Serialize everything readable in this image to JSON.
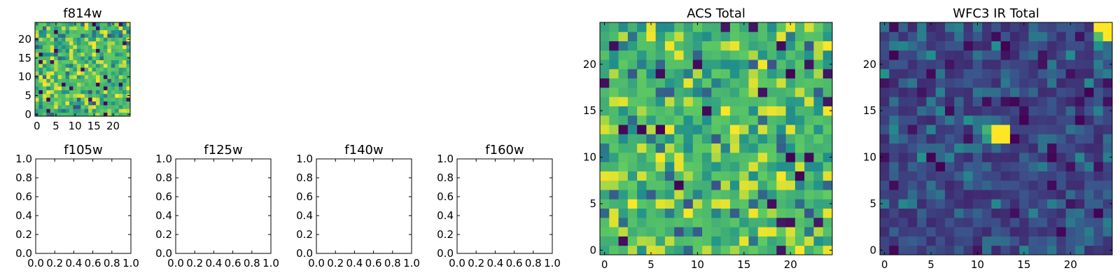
{
  "figure": {
    "background": "#ffffff",
    "colormap": "viridis",
    "colormap_stops": [
      "#440154",
      "#3b528b",
      "#21918c",
      "#5ec962",
      "#fde725"
    ]
  },
  "chart_data": [
    {
      "type": "heatmap",
      "title": "f814w",
      "grid_size": 25,
      "pattern": "noise-high",
      "seed": 11,
      "x_ticks": [
        0,
        5,
        10,
        15,
        20
      ],
      "y_ticks": [
        0,
        5,
        10,
        15,
        20
      ],
      "x_tick_labels": [
        "0",
        "5",
        "10",
        "15",
        "20"
      ],
      "y_tick_labels": [
        "0",
        "5",
        "10",
        "15",
        "20"
      ],
      "xlim": [
        -0.5,
        24.5
      ],
      "ylim": [
        -0.5,
        24.5
      ]
    },
    {
      "type": "empty",
      "title": "f105w",
      "xlim": [
        0,
        1
      ],
      "ylim": [
        0,
        1
      ],
      "x_tick_labels": [
        "0.0",
        "0.2",
        "0.4",
        "0.6",
        "0.8",
        "1.0"
      ],
      "y_tick_labels": [
        "0.0",
        "0.2",
        "0.4",
        "0.6",
        "0.8",
        "1.0"
      ]
    },
    {
      "type": "empty",
      "title": "f125w",
      "xlim": [
        0,
        1
      ],
      "ylim": [
        0,
        1
      ],
      "x_tick_labels": [
        "0.0",
        "0.2",
        "0.4",
        "0.6",
        "0.8",
        "1.0"
      ],
      "y_tick_labels": [
        "0.0",
        "0.2",
        "0.4",
        "0.6",
        "0.8",
        "1.0"
      ]
    },
    {
      "type": "empty",
      "title": "f140w",
      "xlim": [
        0,
        1
      ],
      "ylim": [
        0,
        1
      ],
      "x_tick_labels": [
        "0.0",
        "0.2",
        "0.4",
        "0.6",
        "0.8",
        "1.0"
      ],
      "y_tick_labels": [
        "0.0",
        "0.2",
        "0.4",
        "0.6",
        "0.8",
        "1.0"
      ]
    },
    {
      "type": "empty",
      "title": "f160w",
      "xlim": [
        0,
        1
      ],
      "ylim": [
        0,
        1
      ],
      "x_tick_labels": [
        "0.0",
        "0.2",
        "0.4",
        "0.6",
        "0.8",
        "1.0"
      ],
      "y_tick_labels": [
        "0.0",
        "0.2",
        "0.4",
        "0.6",
        "0.8",
        "1.0"
      ]
    },
    {
      "type": "heatmap",
      "title": "ACS Total",
      "grid_size": 25,
      "pattern": "noise-high",
      "seed": 29,
      "x_ticks": [
        0,
        5,
        10,
        15,
        20
      ],
      "y_ticks": [
        0,
        5,
        10,
        15,
        20
      ],
      "x_tick_labels": [
        "0",
        "5",
        "10",
        "15",
        "20"
      ],
      "y_tick_labels": [
        "0",
        "5",
        "10",
        "15",
        "20"
      ],
      "xlim": [
        -0.5,
        24.5
      ],
      "ylim": [
        -0.5,
        24.5
      ]
    },
    {
      "type": "heatmap",
      "title": "WFC3 IR Total",
      "grid_size": 25,
      "pattern": "noise-low",
      "seed": 47,
      "hotspots": [
        {
          "x": 12,
          "y": 12,
          "value": 1.0
        },
        {
          "x": 13,
          "y": 12,
          "value": 1.0
        },
        {
          "x": 12,
          "y": 13,
          "value": 1.0
        },
        {
          "x": 13,
          "y": 13,
          "value": 1.0
        },
        {
          "x": 11,
          "y": 13,
          "value": 0.65
        },
        {
          "x": 11,
          "y": 12,
          "value": 0.55
        },
        {
          "x": 23,
          "y": 24,
          "value": 1.0
        },
        {
          "x": 24,
          "y": 24,
          "value": 1.0
        },
        {
          "x": 23,
          "y": 23,
          "value": 0.7
        },
        {
          "x": 24,
          "y": 23,
          "value": 1.0
        }
      ],
      "x_ticks": [
        0,
        5,
        10,
        15,
        20
      ],
      "y_ticks": [
        0,
        5,
        10,
        15,
        20
      ],
      "x_tick_labels": [
        "0",
        "5",
        "10",
        "15",
        "20"
      ],
      "y_tick_labels": [
        "0",
        "5",
        "10",
        "15",
        "20"
      ],
      "xlim": [
        -0.5,
        24.5
      ],
      "ylim": [
        -0.5,
        24.5
      ]
    }
  ]
}
